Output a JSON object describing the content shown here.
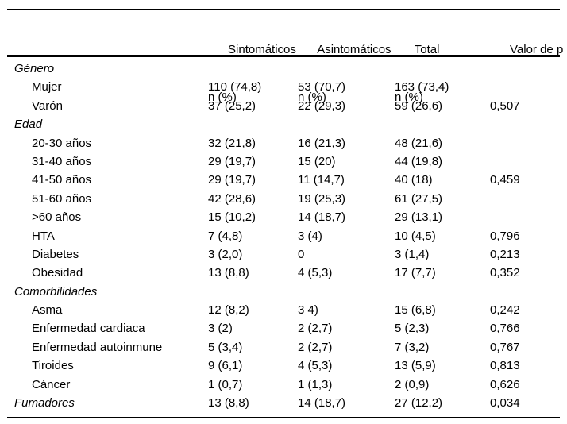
{
  "table": {
    "colors": {
      "text": "#000000",
      "background": "#ffffff",
      "border": "#000000"
    },
    "columns": [
      {
        "label": "",
        "sublabel": ""
      },
      {
        "label": "Sintomáticos",
        "sublabel": "n (%)"
      },
      {
        "label": "Asintomáticos",
        "sublabel": "n (%)"
      },
      {
        "label": "Total",
        "sublabel": "n (%)"
      },
      {
        "label": "Valor de p",
        "sublabel": ""
      }
    ],
    "rows": [
      {
        "label": "Género",
        "italic": true,
        "indent": false,
        "values": [
          "",
          "",
          "",
          ""
        ]
      },
      {
        "label": "Mujer",
        "italic": false,
        "indent": true,
        "values": [
          "110 (74,8)",
          "53 (70,7)",
          "163 (73,4)",
          ""
        ]
      },
      {
        "label": "Varón",
        "italic": false,
        "indent": true,
        "values": [
          "37 (25,2)",
          "22 (29,3)",
          "59 (26,6)",
          "0,507"
        ]
      },
      {
        "label": "Edad",
        "italic": true,
        "indent": false,
        "values": [
          "",
          "",
          "",
          ""
        ]
      },
      {
        "label": "20-30 años",
        "italic": false,
        "indent": true,
        "values": [
          "32 (21,8)",
          "16 (21,3)",
          "48 (21,6)",
          ""
        ]
      },
      {
        "label": "31-40 años",
        "italic": false,
        "indent": true,
        "values": [
          "29 (19,7)",
          "15 (20)",
          "44 (19,8)",
          ""
        ]
      },
      {
        "label": "41-50 años",
        "italic": false,
        "indent": true,
        "values": [
          "29 (19,7)",
          "11 (14,7)",
          "40 (18)",
          "0,459"
        ]
      },
      {
        "label": "51-60 años",
        "italic": false,
        "indent": true,
        "values": [
          "42 (28,6)",
          "19 (25,3)",
          "61 (27,5)",
          ""
        ]
      },
      {
        "label": ">60 años",
        "italic": false,
        "indent": true,
        "values": [
          "15 (10,2)",
          "14 (18,7)",
          "29 (13,1)",
          ""
        ]
      },
      {
        "label": "HTA",
        "italic": false,
        "indent": true,
        "values": [
          "7 (4,8)",
          "3 (4)",
          "10 (4,5)",
          "0,796"
        ]
      },
      {
        "label": "Diabetes",
        "italic": false,
        "indent": true,
        "values": [
          "3 (2,0)",
          "0",
          "3 (1,4)",
          "0,213"
        ]
      },
      {
        "label": "Obesidad",
        "italic": false,
        "indent": true,
        "values": [
          "13 (8,8)",
          "4 (5,3)",
          "17 (7,7)",
          "0,352"
        ]
      },
      {
        "label": "Comorbilidades",
        "italic": true,
        "indent": false,
        "values": [
          "",
          "",
          "",
          ""
        ]
      },
      {
        "label": "Asma",
        "italic": false,
        "indent": true,
        "values": [
          "12 (8,2)",
          "3 4)",
          "15 (6,8)",
          "0,242"
        ]
      },
      {
        "label": "Enfermedad cardiaca",
        "italic": false,
        "indent": true,
        "values": [
          "3 (2)",
          "2 (2,7)",
          "5 (2,3)",
          "0,766"
        ]
      },
      {
        "label": "Enfermedad autoinmune",
        "italic": false,
        "indent": true,
        "values": [
          "5 (3,4)",
          "2 (2,7)",
          "7 (3,2)",
          "0,767"
        ]
      },
      {
        "label": "Tiroides",
        "italic": false,
        "indent": true,
        "values": [
          "9 (6,1)",
          "4 (5,3)",
          "13 (5,9)",
          "0,813"
        ]
      },
      {
        "label": "Cáncer",
        "italic": false,
        "indent": true,
        "values": [
          "1 (0,7)",
          "1 (1,3)",
          "2 (0,9)",
          "0,626"
        ]
      },
      {
        "label": "Fumadores",
        "italic": true,
        "indent": false,
        "values": [
          "13 (8,8)",
          "14 (18,7)",
          "27 (12,2)",
          "0,034"
        ]
      }
    ]
  }
}
